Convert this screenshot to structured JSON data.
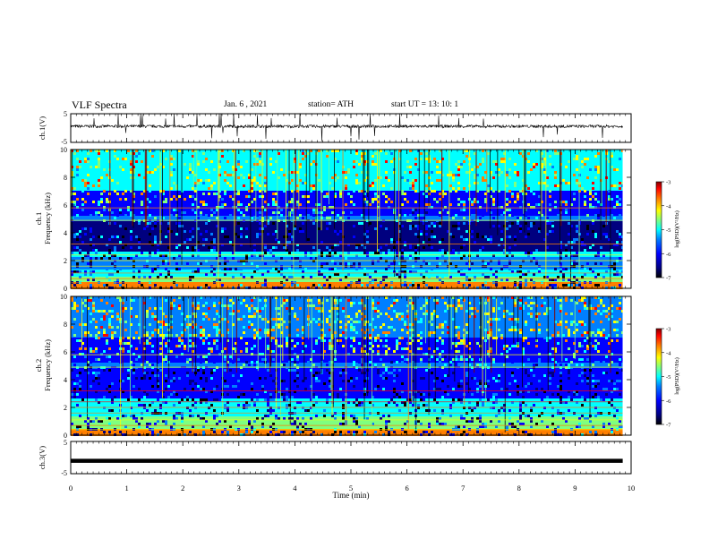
{
  "header": {
    "title": "VLF Spectra",
    "date": "Jan. 6 , 2021",
    "station": "station= ATH",
    "start": "start  UT =  13: 10: 1"
  },
  "colors": {
    "spectrogram_palette": [
      "#000000",
      "#00007f",
      "#0000ff",
      "#007fff",
      "#00ffff",
      "#7fff7f",
      "#ffff00",
      "#ff7f00",
      "#ff0000",
      "#7f0000"
    ]
  },
  "chart_data": [
    {
      "type": "line",
      "name": "ch1-waveform",
      "ylabel": "ch.1(V)",
      "ylim": [
        -5,
        5
      ],
      "yticks": [
        "5",
        "-5"
      ],
      "xlim": [
        0,
        10
      ],
      "baseline": 0.6,
      "noise_amplitude": 0.5,
      "notes_visible": "noisy waveform with frequent spikes"
    },
    {
      "type": "heatmap",
      "name": "ch1-spectrogram",
      "ylabel_line1": "ch.1",
      "ylabel_line2": "Frequency (kHz)",
      "ylim": [
        0,
        10
      ],
      "yticks": [
        "0",
        "2",
        "4",
        "6",
        "8",
        "10"
      ],
      "xlim": [
        0,
        10
      ],
      "data_end_min": 9.85,
      "colorbar": {
        "label": "log(PSD)(V²/Hz)",
        "range": [
          -7,
          -3
        ],
        "ticks": [
          "-3",
          "-4",
          "-5",
          "-6",
          "-7"
        ]
      }
    },
    {
      "type": "heatmap",
      "name": "ch2-spectrogram",
      "ylabel_line1": "ch.2",
      "ylabel_line2": "Frequency (kHz)",
      "ylim": [
        0,
        10
      ],
      "yticks": [
        "0",
        "2",
        "4",
        "6",
        "8",
        "10"
      ],
      "xlim": [
        0,
        10
      ],
      "data_end_min": 9.85,
      "colorbar": {
        "label": "log(PSD)(V²/Hz)",
        "range": [
          -7,
          -3
        ],
        "ticks": [
          "-3",
          "-4",
          "-5",
          "-6",
          "-7"
        ]
      }
    },
    {
      "type": "line",
      "name": "ch3-waveform",
      "ylabel": "ch.3(V)",
      "ylim": [
        -5,
        5
      ],
      "yticks": [
        "5",
        "-5"
      ],
      "xlim": [
        0,
        10
      ],
      "baseline": -1.0,
      "notes_visible": "flat thick line"
    }
  ],
  "x_axis": {
    "label": "Time (min)",
    "ticks": [
      "0",
      "1",
      "2",
      "3",
      "4",
      "5",
      "6",
      "7",
      "8",
      "9",
      "10"
    ]
  }
}
